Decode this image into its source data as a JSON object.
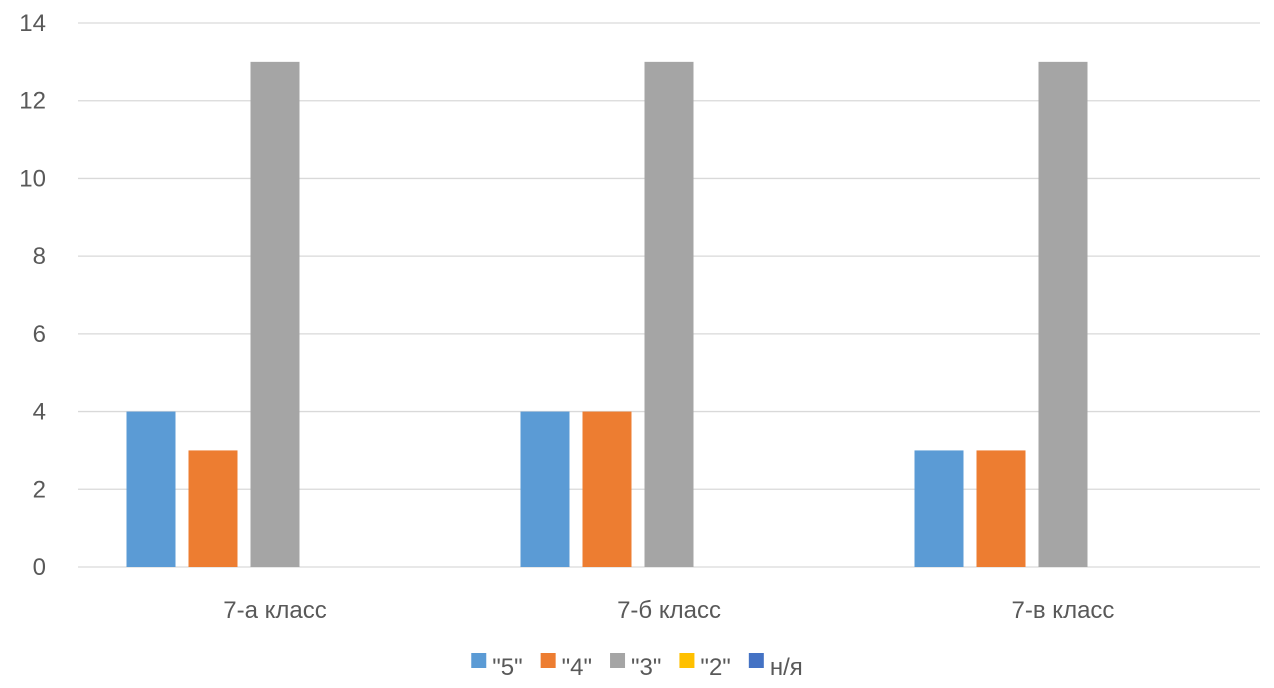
{
  "chart_data": {
    "type": "bar",
    "categories": [
      "7-а класс",
      "7-б класс",
      "7-в класс"
    ],
    "series": [
      {
        "name": "\"5\"",
        "color": "#5b9bd5",
        "values": [
          4,
          4,
          3
        ]
      },
      {
        "name": "\"4\"",
        "color": "#ed7d31",
        "values": [
          3,
          4,
          3
        ]
      },
      {
        "name": "\"3\"",
        "color": "#a5a5a5",
        "values": [
          13,
          13,
          13
        ]
      },
      {
        "name": "\"2\"",
        "color": "#ffc000",
        "values": [
          0,
          0,
          0
        ]
      },
      {
        "name": "н/я",
        "color": "#4472c4",
        "values": [
          0,
          0,
          0
        ]
      }
    ],
    "ylim": [
      0,
      14
    ],
    "yticks": [
      0,
      2,
      4,
      6,
      8,
      10,
      12,
      14
    ],
    "grid": true,
    "legend_position": "bottom"
  }
}
